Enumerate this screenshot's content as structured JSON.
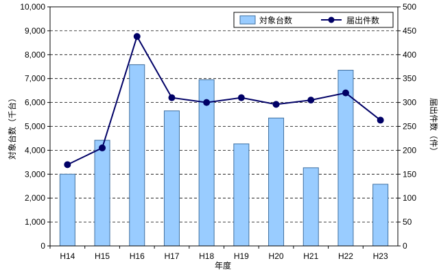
{
  "chart_data": {
    "type": "bar+line",
    "categories": [
      "H14",
      "H15",
      "H16",
      "H17",
      "H18",
      "H19",
      "H20",
      "H21",
      "H22",
      "H23"
    ],
    "series": [
      {
        "name": "対象台数",
        "type": "bar",
        "axis": "left",
        "color": "#99ccff",
        "values": [
          3000,
          4420,
          7580,
          5650,
          6950,
          4270,
          5350,
          3270,
          7350,
          2580
        ]
      },
      {
        "name": "届出件数",
        "type": "line",
        "axis": "right",
        "color": "#000066",
        "values": [
          170,
          205,
          438,
          310,
          300,
          310,
          296,
          305,
          320,
          263
        ]
      }
    ],
    "xlabel": "年度",
    "ylabel_left": "対象台数（千台）",
    "ylabel_right": "届出件数（件）",
    "ylim_left": [
      0,
      10000
    ],
    "ylim_right": [
      0,
      500
    ],
    "yticks_left": [
      "0",
      "1,000",
      "2,000",
      "3,000",
      "4,000",
      "5,000",
      "6,000",
      "7,000",
      "8,000",
      "9,000",
      "10,000"
    ],
    "yticks_right": [
      "0",
      "50",
      "100",
      "150",
      "200",
      "250",
      "300",
      "350",
      "400",
      "450",
      "500"
    ],
    "grid": "horizontal-dashed",
    "legend_position": "top-right"
  }
}
